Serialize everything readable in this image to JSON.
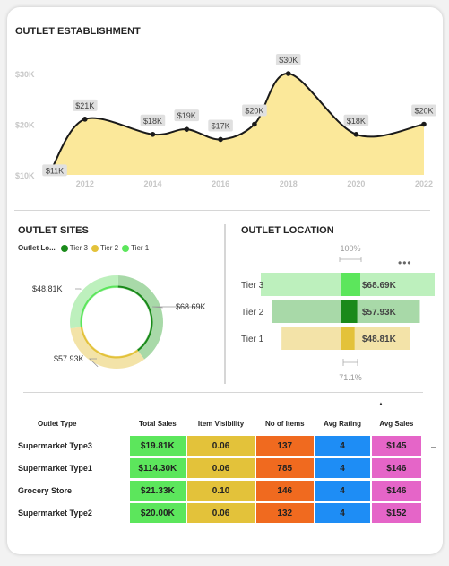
{
  "line_chart": {
    "title": "OUTLET ESTABLISHMENT",
    "y_ticks": [
      "$10K",
      "$20K",
      "$30K"
    ],
    "x_ticks": [
      "2012",
      "2014",
      "2016",
      "2018",
      "2020",
      "2022"
    ]
  },
  "sites": {
    "title": "OUTLET SITES",
    "legend_title": "Outlet Lo...",
    "legend": [
      {
        "label": "Tier 3",
        "color": "#1a8a1a"
      },
      {
        "label": "Tier 2",
        "color": "#e3c23a"
      },
      {
        "label": "Tier 1",
        "color": "#5ce65c"
      }
    ],
    "labels": {
      "tier3": "$68.69K",
      "tier2": "$57.93K",
      "tier1": "$48.81K"
    }
  },
  "location": {
    "title": "OUTLET LOCATION",
    "top_label": "100%",
    "bottom_label": "71.1%",
    "more_icon": "ellipsis-icon"
  },
  "table": {
    "headers": [
      "Outlet Type",
      "Total Sales",
      "Item Visibility",
      "No of Items",
      "Avg Rating",
      "Avg Sales"
    ],
    "rows": [
      [
        "Supermarket Type3",
        "$19.81K",
        "0.06",
        "137",
        "4",
        "$145"
      ],
      [
        "Supermarket Type1",
        "$114.30K",
        "0.06",
        "785",
        "4",
        "$146"
      ],
      [
        "Grocery Store",
        "$21.33K",
        "0.10",
        "146",
        "4",
        "$146"
      ],
      [
        "Supermarket Type2",
        "$20.00K",
        "0.06",
        "132",
        "4",
        "$152"
      ]
    ],
    "sort_indicator": "▲"
  },
  "chart_data": [
    {
      "type": "area",
      "title": "OUTLET ESTABLISHMENT",
      "x": [
        2011,
        2012,
        2014,
        2015,
        2016,
        2017,
        2018,
        2020,
        2022
      ],
      "values": [
        11000,
        21000,
        18000,
        19000,
        17000,
        20000,
        30000,
        18000,
        20000
      ],
      "data_labels": [
        "$11K",
        "$21K",
        "$18K",
        "$19K",
        "$17K",
        "$20K",
        "$30K",
        "$18K",
        "$20K"
      ],
      "ylim": [
        10000,
        30000
      ],
      "y_ticks": [
        10000,
        20000,
        30000
      ],
      "x_ticks": [
        2012,
        2014,
        2016,
        2018,
        2020,
        2022
      ],
      "colors": {
        "fill": "#fbe89a",
        "line": "#1a1a1a"
      }
    },
    {
      "type": "pie",
      "title": "OUTLET SITES",
      "categories": [
        "Tier 3",
        "Tier 2",
        "Tier 1"
      ],
      "values": [
        68.69,
        57.93,
        48.81
      ],
      "data_labels": [
        "$68.69K",
        "$57.93K",
        "$48.81K"
      ],
      "colors": [
        "#1a8a1a",
        "#e3c23a",
        "#5ce65c"
      ],
      "highlighted": "Tier 3"
    },
    {
      "type": "bar",
      "title": "OUTLET LOCATION",
      "categories": [
        "Tier 3",
        "Tier 2",
        "Tier 1"
      ],
      "values": [
        68.69,
        57.93,
        48.81
      ],
      "data_labels": [
        "$68.69K",
        "$57.93K",
        "$48.81K"
      ],
      "colors": [
        "#5ce65c",
        "#1a8a1a",
        "#e3c23a"
      ],
      "top_label": "100%",
      "bottom_label": "71.1%"
    }
  ]
}
